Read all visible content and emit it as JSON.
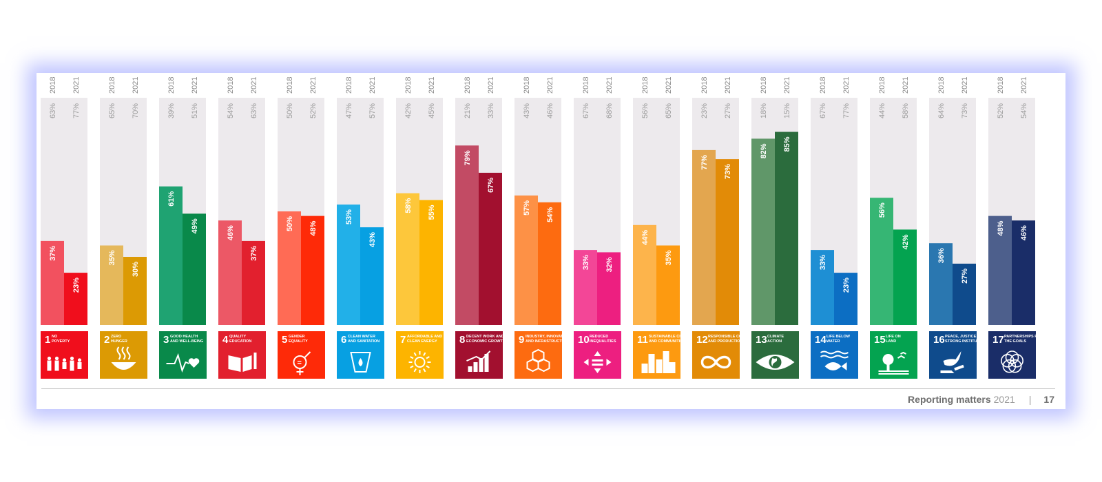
{
  "footer": {
    "publication": "Reporting matters",
    "year": "2021",
    "separator": "|",
    "page": "17"
  },
  "chart_data": {
    "type": "bar",
    "series_names": [
      "2018",
      "2021"
    ],
    "title": "",
    "xlabel": "",
    "ylabel": "",
    "ylim": [
      0,
      100
    ],
    "background_label_note": "light grey remainder bars",
    "goals": [
      {
        "number": "1",
        "title": "NO POVERTY",
        "icon": "family-icon",
        "color": "#e5243b",
        "light": "#f2515f",
        "values": [
          37,
          23
        ],
        "remainder": [
          63,
          77
        ],
        "value_labels": [
          "37%",
          "23%"
        ],
        "remainder_labels": [
          "63%",
          "77%"
        ]
      },
      {
        "number": "2",
        "title": "ZERO HUNGER",
        "icon": "bowl-icon",
        "color": "#dda63a",
        "light": "#e5b85b",
        "values": [
          35,
          30
        ],
        "remainder": [
          65,
          70
        ],
        "value_labels": [
          "35%",
          "30%"
        ],
        "remainder_labels": [
          "65%",
          "70%"
        ]
      },
      {
        "number": "3",
        "title": "GOOD HEALTH AND WELL-BEING",
        "icon": "heartbeat-icon",
        "color": "#4c9f38",
        "light": "#1fa372",
        "values": [
          61,
          49
        ],
        "remainder": [
          39,
          51
        ],
        "value_labels": [
          "61%",
          "49%"
        ],
        "remainder_labels": [
          "39%",
          "51%"
        ]
      },
      {
        "number": "4",
        "title": "QUALITY EDUCATION",
        "icon": "book-icon",
        "color": "#c5192d",
        "light": "#ec5866",
        "values": [
          46,
          37
        ],
        "remainder": [
          54,
          63
        ],
        "value_labels": [
          "46%",
          "37%"
        ],
        "remainder_labels": [
          "54%",
          "63%"
        ]
      },
      {
        "number": "5",
        "title": "GENDER EQUALITY",
        "icon": "gender-icon",
        "color": "#ff3a21",
        "light": "#ff6b55",
        "values": [
          50,
          48
        ],
        "remainder": [
          50,
          52
        ],
        "value_labels": [
          "50%",
          "48%"
        ],
        "remainder_labels": [
          "50%",
          "52%"
        ]
      },
      {
        "number": "6",
        "title": "CLEAN WATER AND SANITATION",
        "icon": "water-drop-icon",
        "color": "#26bde2",
        "light": "#22b0e8",
        "values": [
          53,
          43
        ],
        "remainder": [
          47,
          57
        ],
        "value_labels": [
          "53%",
          "43%"
        ],
        "remainder_labels": [
          "47%",
          "57%"
        ]
      },
      {
        "number": "7",
        "title": "AFFORDABLE AND CLEAN ENERGY",
        "icon": "sun-icon",
        "color": "#fcc30b",
        "light": "#fdc73b",
        "values": [
          58,
          55
        ],
        "remainder": [
          42,
          45
        ],
        "value_labels": [
          "58%",
          "55%"
        ],
        "remainder_labels": [
          "42%",
          "45%"
        ]
      },
      {
        "number": "8",
        "title": "DECENT WORK AND ECONOMIC GROWTH",
        "icon": "growth-chart-icon",
        "color": "#a21942",
        "light": "#c24b64",
        "values": [
          79,
          67
        ],
        "remainder": [
          21,
          33
        ],
        "value_labels": [
          "79%",
          "67%"
        ],
        "remainder_labels": [
          "21%",
          "33%"
        ]
      },
      {
        "number": "9",
        "title": "INDUSTRY, INNOVATION AND INFRASTRUCTURE",
        "icon": "cubes-icon",
        "color": "#fd6925",
        "light": "#fd9146",
        "values": [
          57,
          54
        ],
        "remainder": [
          43,
          46
        ],
        "value_labels": [
          "57%",
          "54%"
        ],
        "remainder_labels": [
          "43%",
          "46%"
        ]
      },
      {
        "number": "10",
        "title": "REDUCED INEQUALITIES",
        "icon": "arrows-icon",
        "color": "#dd1367",
        "light": "#f34697",
        "values": [
          33,
          32
        ],
        "remainder": [
          67,
          68
        ],
        "value_labels": [
          "33%",
          "32%"
        ],
        "remainder_labels": [
          "67%",
          "68%"
        ]
      },
      {
        "number": "11",
        "title": "SUSTAINABLE CITIES AND COMMUNITIES",
        "icon": "city-icon",
        "color": "#fd9d24",
        "light": "#fdb44b",
        "values": [
          44,
          35
        ],
        "remainder": [
          56,
          65
        ],
        "value_labels": [
          "44%",
          "35%"
        ],
        "remainder_labels": [
          "56%",
          "65%"
        ]
      },
      {
        "number": "12",
        "title": "RESPONSIBLE CONSUMPTION AND PRODUCTION",
        "icon": "infinity-icon",
        "color": "#bf8b2e",
        "light": "#e3a64f",
        "values": [
          77,
          73
        ],
        "remainder": [
          23,
          27
        ],
        "value_labels": [
          "77%",
          "73%"
        ],
        "remainder_labels": [
          "23%",
          "27%"
        ]
      },
      {
        "number": "13",
        "title": "CLIMATE ACTION",
        "icon": "eye-globe-icon",
        "color": "#3f7e44",
        "light": "#609769",
        "values": [
          82,
          85
        ],
        "remainder": [
          18,
          15
        ],
        "value_labels": [
          "82%",
          "85%"
        ],
        "remainder_labels": [
          "18%",
          "15%"
        ]
      },
      {
        "number": "14",
        "title": "LIFE BELOW WATER",
        "icon": "fish-icon",
        "color": "#0a97d9",
        "light": "#1e8fd4",
        "values": [
          33,
          23
        ],
        "remainder": [
          67,
          77
        ],
        "value_labels": [
          "33%",
          "23%"
        ],
        "remainder_labels": [
          "67%",
          "77%"
        ]
      },
      {
        "number": "15",
        "title": "LIFE ON LAND",
        "icon": "tree-icon",
        "color": "#56c02b",
        "light": "#36b674",
        "values": [
          56,
          42
        ],
        "remainder": [
          44,
          58
        ],
        "value_labels": [
          "56%",
          "42%"
        ],
        "remainder_labels": [
          "44%",
          "58%"
        ]
      },
      {
        "number": "16",
        "title": "PEACE, JUSTICE AND STRONG INSTITUTIONS",
        "icon": "dove-icon",
        "color": "#00689d",
        "light": "#2a77b0",
        "values": [
          36,
          27
        ],
        "remainder": [
          64,
          73
        ],
        "value_labels": [
          "36%",
          "27%"
        ],
        "remainder_labels": [
          "64%",
          "73%"
        ]
      },
      {
        "number": "17",
        "title": "PARTNERSHIPS FOR THE GOALS",
        "icon": "rings-icon",
        "color": "#19486a",
        "light": "#4d5f8c",
        "values": [
          48,
          46
        ],
        "remainder": [
          52,
          54
        ],
        "value_labels": [
          "48%",
          "46%"
        ],
        "remainder_labels": [
          "52%",
          "54%"
        ]
      }
    ]
  },
  "colors": {
    "remainder_bar": "#edeaed",
    "dark_series_overrides": {
      "3": "#09894a",
      "4": "#e2202e",
      "5": "#fe2a08",
      "6": "#07a0e2",
      "7": "#fdb400",
      "8": "#a2102f",
      "9": "#fd6b10",
      "10": "#ed1f80",
      "11": "#fd9a10",
      "12": "#e28b07",
      "13": "#2b6c3d",
      "14": "#0c6ec3",
      "15": "#04a350",
      "16": "#0f4b8c",
      "17": "#1a2d68",
      "1": "#f00e1c",
      "2": "#dc9a04"
    }
  }
}
